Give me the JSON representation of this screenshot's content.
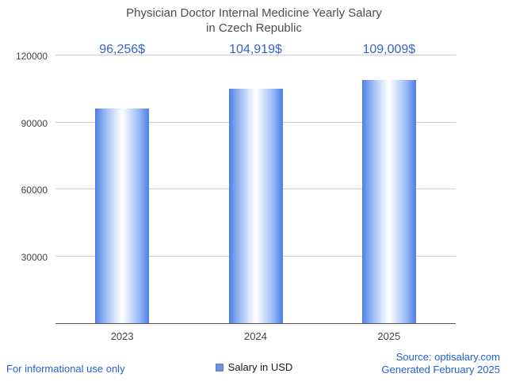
{
  "title": {
    "line1": "Physician Doctor Internal Medicine Yearly Salary",
    "line2": "in Czech Republic"
  },
  "chart_data": {
    "type": "bar",
    "title": "Physician Doctor Internal Medicine Yearly Salary in Czech Republic",
    "categories": [
      "2023",
      "2024",
      "2025"
    ],
    "values": [
      96256,
      104919,
      109009
    ],
    "value_labels": [
      "96,256$",
      "104,919$",
      "109,009$"
    ],
    "ylim": [
      0,
      120000
    ],
    "yticks": [
      30000,
      60000,
      90000,
      120000
    ],
    "grid": true,
    "legend_label": "Salary in USD",
    "legend_position": "bottom",
    "xlabel": "",
    "ylabel": ""
  },
  "legend": {
    "label": "Salary in USD"
  },
  "footer": {
    "disclaimer": "For informational use only",
    "source": "Source: optisalary.com",
    "generated": "Generated February 2025"
  },
  "colors": {
    "value_label_blue": "#3366cc",
    "footer_link_blue": "#2361d8",
    "bar_edge_blue": "#4d7ee8",
    "legend_swatch_blue": "#7090d9",
    "title_gray": "#4d4d4d",
    "axis_label_gray": "#444444",
    "gridline_gray": "#cccccc"
  }
}
